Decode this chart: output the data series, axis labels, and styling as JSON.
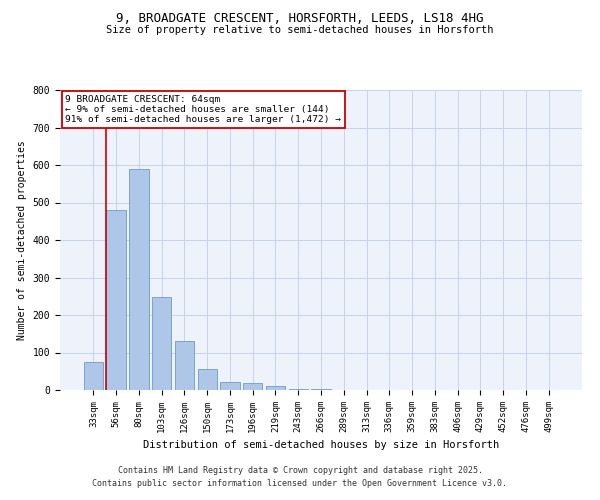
{
  "title_line1": "9, BROADGATE CRESCENT, HORSFORTH, LEEDS, LS18 4HG",
  "title_line2": "Size of property relative to semi-detached houses in Horsforth",
  "categories": [
    "33sqm",
    "56sqm",
    "80sqm",
    "103sqm",
    "126sqm",
    "150sqm",
    "173sqm",
    "196sqm",
    "219sqm",
    "243sqm",
    "266sqm",
    "289sqm",
    "313sqm",
    "336sqm",
    "359sqm",
    "383sqm",
    "406sqm",
    "429sqm",
    "452sqm",
    "476sqm",
    "499sqm"
  ],
  "values": [
    75,
    480,
    590,
    248,
    130,
    55,
    22,
    18,
    10,
    4,
    2,
    1,
    0,
    0,
    0,
    0,
    0,
    0,
    0,
    0,
    0
  ],
  "bar_color": "#aec6e8",
  "bar_edge_color": "#5a8fc0",
  "vline_color": "#cc0000",
  "vline_x_index": 1,
  "xlabel": "Distribution of semi-detached houses by size in Horsforth",
  "ylabel": "Number of semi-detached properties",
  "ylim": [
    0,
    800
  ],
  "yticks": [
    0,
    100,
    200,
    300,
    400,
    500,
    600,
    700,
    800
  ],
  "annotation_title": "9 BROADGATE CRESCENT: 64sqm",
  "annotation_line1": "← 9% of semi-detached houses are smaller (144)",
  "annotation_line2": "91% of semi-detached houses are larger (1,472) →",
  "annotation_box_color": "#ffffff",
  "annotation_box_edge": "#cc0000",
  "grid_color": "#c8d4e8",
  "bg_color": "#eef2fa",
  "footer_line1": "Contains HM Land Registry data © Crown copyright and database right 2025.",
  "footer_line2": "Contains public sector information licensed under the Open Government Licence v3.0."
}
